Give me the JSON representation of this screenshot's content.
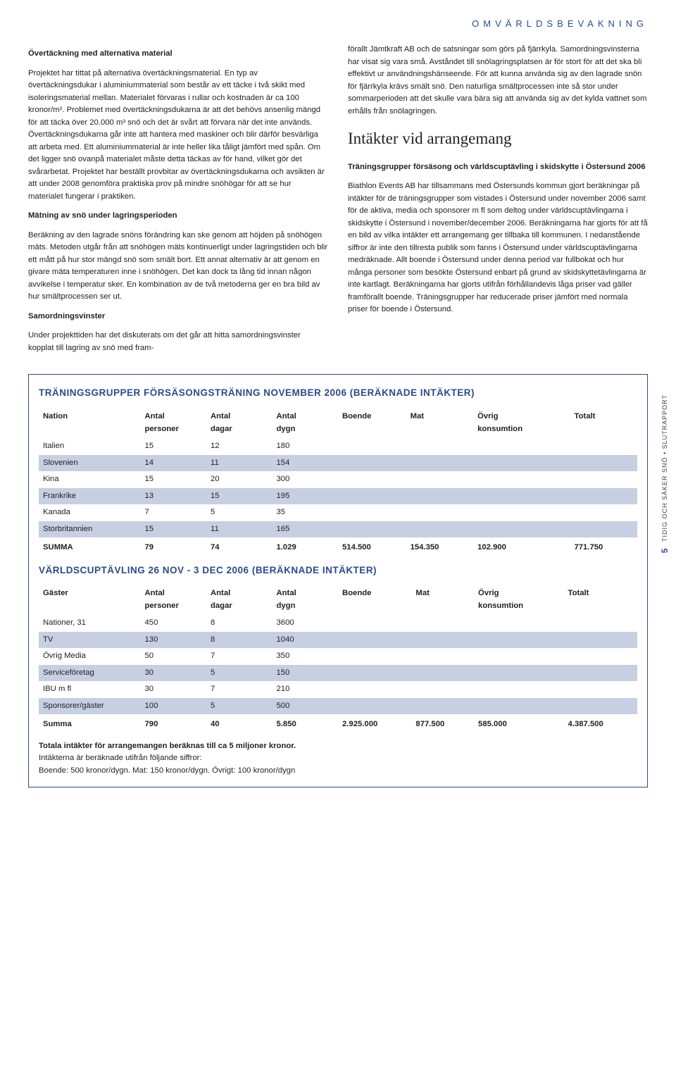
{
  "headerTag": "OMVÄRLDSBEVAKNING",
  "sideLabel": {
    "page": "5",
    "text": "TIDIG OCH SÄKER SNÖ • SLUTRAPPORT"
  },
  "left": {
    "h1": "Övertäckning med alternativa material",
    "p1": "Projektet har tittat på alternativa övertäckningsmaterial. En typ av övertäckningsdukar i aluminiummaterial som består av ett täcke i två skikt med isoleringsmaterial mellan. Materialet förvaras i rullar och kostnaden är ca 100 kronor/m². Problemet med övertäckningsdukarna är att det behövs ansenlig mängd för att täcka över 20.000 m³ snö och det är svårt att förvara när det inte används. Övertäckningsdukarna går inte att hantera med maskiner och blir därför besvärliga att arbeta med. Ett aluminiummaterial är inte heller lika tåligt jämfört med spån. Om det ligger snö ovanpå materialet måste detta täckas av för hand, vilket gör det svårarbetat. Projektet har beställt provbitar av övertäckningsdukarna och avsikten är att under 2008 genomföra praktiska prov på mindre snöhögar för att se hur materialet fungerar i praktiken.",
    "h2": "Mätning av snö under lagringsperioden",
    "p2": "Beräkning av den lagrade snöns förändring kan ske genom att höjden på snöhögen mäts. Metoden utgår från att snöhögen mäts kontinuerligt under lagringstiden och blir ett mått på hur stor mängd snö som smält bort. Ett annat alternativ är att genom en givare mäta temperaturen inne i snöhögen. Det kan dock ta lång tid innan någon avvikelse i temperatur sker. En kombination av de två metoderna ger en bra bild av hur smältprocessen ser ut.",
    "h3": "Samordningsvinster",
    "p3": "Under projekttiden har det diskuterats om det går att hitta samordningsvinster kopplat till lagring av snö med fram-"
  },
  "right": {
    "p1": "förallt Jämtkraft AB och de satsningar som görs på fjärrkyla. Samordningsvinsterna har visat sig vara små. Avståndet till snölagringsplatsen är för stort för att det ska bli effektivt ur användningshänseende. För att kunna använda sig av den lagrade snön för fjärrkyla krävs smält snö. Den naturliga smältprocessen inte så stor under sommarperioden att det skulle vara bära sig att använda sig av det kylda vattnet som erhålls från snölagringen.",
    "h2": "Intäkter vid arrangemang",
    "subhead": "Träningsgrupper försäsong och världscuptävling i skidskytte i Östersund 2006",
    "p2": "Biathlon Events AB har tillsammans med Östersunds kommun gjort beräkningar på intäkter för de träningsgrupper som vistades i Östersund under november 2006 samt för de aktiva, media och sponsorer m fl som deltog under världscuptävlingarna i skidskytte i Östersund i november/december 2006. Beräkningarna har gjorts för att få en bild av vilka intäkter ett arrangemang ger tillbaka till kommunen. I nedanstående siffror är inte den tillresta publik som fanns i Östersund under världscuptävlingarna medräknade. Allt boende i Östersund under denna period var fullbokat och hur många personer som besökte Östersund enbart på grund av skidskyttetävlingarna är inte kartlagt. Beräkningarna har gjorts utifrån förhållandevis låga priser vad gäller framförallt boende. Träningsgrupper har reducerade priser jämfört med normala priser för boende i Östersund."
  },
  "table1": {
    "title": "TRÄNINGSGRUPPER FÖRSÄSONGSTRÄNING NOVEMBER 2006 (BERÄKNADE INTÄKTER)",
    "headers": [
      "Nation",
      "Antal personer",
      "Antal dagar",
      "Antal dygn",
      "Boende",
      "Mat",
      "Övrig konsumtion",
      "Totalt"
    ],
    "rows": [
      {
        "c": [
          "Italien",
          "15",
          "12",
          "180",
          "",
          "",
          "",
          ""
        ],
        "shade": false
      },
      {
        "c": [
          "Slovenien",
          "14",
          "11",
          "154",
          "",
          "",
          "",
          ""
        ],
        "shade": true
      },
      {
        "c": [
          "Kina",
          "15",
          "20",
          "300",
          "",
          "",
          "",
          ""
        ],
        "shade": false
      },
      {
        "c": [
          "Frankrike",
          "13",
          "15",
          "195",
          "",
          "",
          "",
          ""
        ],
        "shade": true
      },
      {
        "c": [
          "Kanada",
          "7",
          "5",
          "35",
          "",
          "",
          "",
          ""
        ],
        "shade": false
      },
      {
        "c": [
          "Storbritannien",
          "15",
          "11",
          "165",
          "",
          "",
          "",
          ""
        ],
        "shade": true
      }
    ],
    "sum": [
      "SUMMA",
      "79",
      "74",
      "1.029",
      "514.500",
      "154.350",
      "102.900",
      "771.750"
    ]
  },
  "table2": {
    "title": "VÄRLDSCUPTÄVLING 26 NOV - 3 DEC 2006 (BERÄKNADE INTÄKTER)",
    "headers": [
      "Gäster",
      "Antal personer",
      "Antal dagar",
      "Antal dygn",
      "Boende",
      "Mat",
      "Övrig konsumtion",
      "Totalt"
    ],
    "rows": [
      {
        "c": [
          "Nationer, 31",
          "450",
          "8",
          "3600",
          "",
          "",
          "",
          ""
        ],
        "shade": false
      },
      {
        "c": [
          "TV",
          "130",
          "8",
          "1040",
          "",
          "",
          "",
          ""
        ],
        "shade": true
      },
      {
        "c": [
          "Övrig Media",
          "50",
          "7",
          "350",
          "",
          "",
          "",
          ""
        ],
        "shade": false
      },
      {
        "c": [
          "Serviceföretag",
          "30",
          "5",
          "150",
          "",
          "",
          "",
          ""
        ],
        "shade": true
      },
      {
        "c": [
          "IBU m fl",
          "30",
          "7",
          "210",
          "",
          "",
          "",
          ""
        ],
        "shade": false
      },
      {
        "c": [
          "Sponsorer/gäster",
          "100",
          "5",
          "500",
          "",
          "",
          "",
          ""
        ],
        "shade": true
      }
    ],
    "sum": [
      "Summa",
      "790",
      "40",
      "5.850",
      "2.925.000",
      "877.500",
      "585.000",
      "4.387.500"
    ]
  },
  "footnote": {
    "bold": "Totala intäkter för arrangemangen beräknas till ca 5 miljoner kronor.",
    "l2": "Intäkterna är beräknade utifrån följande siffror:",
    "l3": "Boende: 500 kronor/dygn. Mat: 150 kronor/dygn. Övrigt: 100 kronor/dygn"
  }
}
